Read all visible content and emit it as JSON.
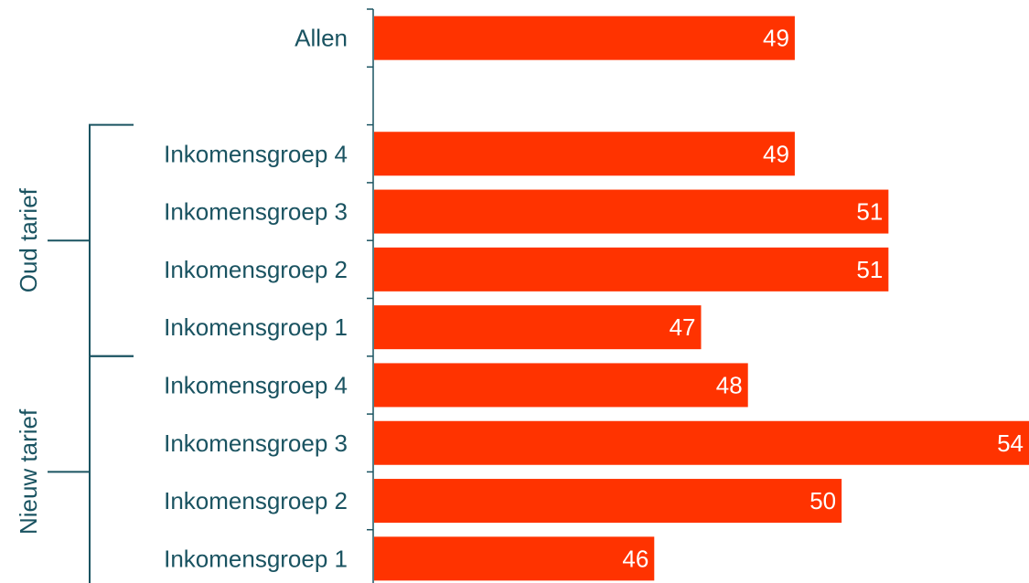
{
  "chart_data": {
    "type": "bar",
    "orientation": "horizontal",
    "title": "",
    "xlabel": "",
    "ylabel": "",
    "bar_color": "#ff3300",
    "text_color": "#1a5361",
    "value_label_color": "#ffffff",
    "xlim": [
      40,
      54
    ],
    "rows": [
      {
        "label": "Allen",
        "value": 49,
        "group": null
      },
      {
        "label": "",
        "value": null,
        "group": null
      },
      {
        "label": "Inkomensgroep 4",
        "value": 49,
        "group": "Oud tarief"
      },
      {
        "label": "Inkomensgroep 3",
        "value": 51,
        "group": "Oud tarief"
      },
      {
        "label": "Inkomensgroep 2",
        "value": 51,
        "group": "Oud tarief"
      },
      {
        "label": "Inkomensgroep 1",
        "value": 47,
        "group": "Oud tarief"
      },
      {
        "label": "Inkomensgroep 4",
        "value": 48,
        "group": "Nieuw tarief"
      },
      {
        "label": "Inkomensgroep 3",
        "value": 54,
        "group": "Nieuw tarief"
      },
      {
        "label": "Inkomensgroep 2",
        "value": 50,
        "group": "Nieuw tarief"
      },
      {
        "label": "Inkomensgroep 1",
        "value": 46,
        "group": "Nieuw tarief"
      }
    ],
    "groups": [
      "Oud tarief",
      "Nieuw tarief"
    ]
  }
}
